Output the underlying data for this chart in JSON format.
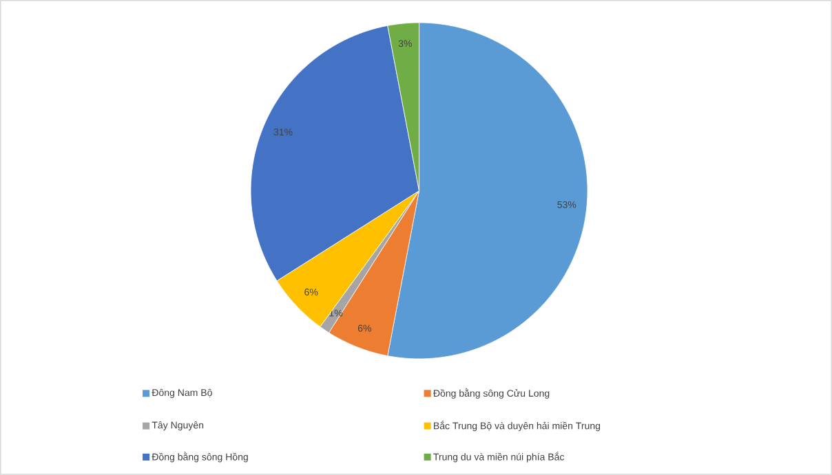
{
  "chart_data": {
    "type": "pie",
    "categories": [
      "Đông Nam Bộ",
      "Đồng bằng sông Cửu Long",
      "Tây Nguyên",
      "Bắc Trung Bộ và duyên hải miền Trung",
      "Đồng bằng sông Hồng",
      "Trung du và miền núi phía Bắc"
    ],
    "values": [
      53,
      6,
      1,
      6,
      31,
      3
    ],
    "colors": [
      "#5b9bd5",
      "#ed7d31",
      "#a5a5a5",
      "#ffc000",
      "#4472c4",
      "#70ad47"
    ],
    "value_labels": [
      "53%",
      "6%",
      "1%",
      "6%",
      "31%",
      "3%"
    ],
    "legend": "bottom"
  }
}
